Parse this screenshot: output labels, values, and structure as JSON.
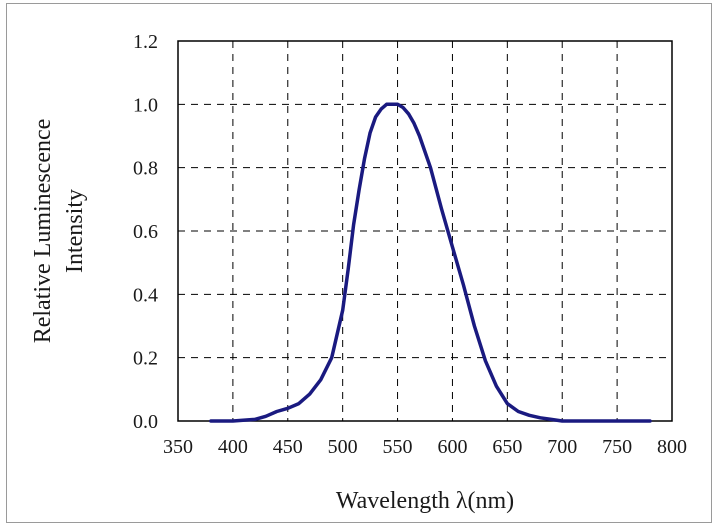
{
  "chart_data": {
    "type": "line",
    "xlabel": "Wavelength λ(nm)",
    "ylabel_line1": "Relative Luminescence",
    "ylabel_line2": "Intensity",
    "xlim": [
      350,
      800
    ],
    "ylim": [
      0,
      1.2
    ],
    "x_ticks": [
      "350",
      "400",
      "450",
      "500",
      "550",
      "600",
      "650",
      "700",
      "750",
      "800"
    ],
    "y_ticks": [
      "0.0",
      "0.2",
      "0.4",
      "0.6",
      "0.8",
      "1.0",
      "1.2"
    ],
    "grid": true,
    "grid_style": "dashed",
    "series": [
      {
        "color": "#1a1a80",
        "x": [
          380,
          400,
          420,
          430,
          440,
          450,
          460,
          470,
          480,
          490,
          500,
          505,
          510,
          515,
          520,
          525,
          530,
          535,
          540,
          545,
          550,
          555,
          560,
          565,
          570,
          580,
          590,
          600,
          610,
          620,
          630,
          640,
          650,
          660,
          670,
          680,
          690,
          700,
          720,
          740,
          760,
          780
        ],
        "y": [
          0,
          0,
          0.005,
          0.015,
          0.03,
          0.04,
          0.055,
          0.085,
          0.13,
          0.2,
          0.35,
          0.48,
          0.62,
          0.73,
          0.83,
          0.91,
          0.96,
          0.985,
          1.0,
          1.0,
          1.0,
          0.99,
          0.97,
          0.94,
          0.9,
          0.8,
          0.67,
          0.55,
          0.43,
          0.3,
          0.19,
          0.11,
          0.055,
          0.03,
          0.018,
          0.01,
          0.005,
          0.0,
          0,
          0,
          0,
          0
        ]
      }
    ]
  }
}
